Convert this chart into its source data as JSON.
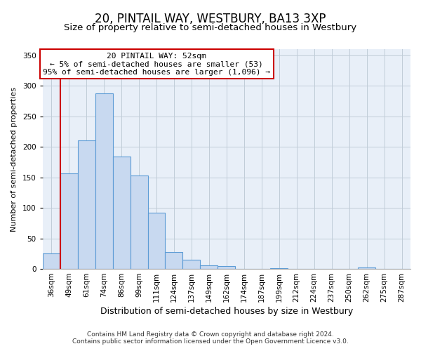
{
  "title": "20, PINTAIL WAY, WESTBURY, BA13 3XP",
  "subtitle": "Size of property relative to semi-detached houses in Westbury",
  "xlabel": "Distribution of semi-detached houses by size in Westbury",
  "ylabel": "Number of semi-detached properties",
  "bar_labels": [
    "36sqm",
    "49sqm",
    "61sqm",
    "74sqm",
    "86sqm",
    "99sqm",
    "111sqm",
    "124sqm",
    "137sqm",
    "149sqm",
    "162sqm",
    "174sqm",
    "187sqm",
    "199sqm",
    "212sqm",
    "224sqm",
    "237sqm",
    "250sqm",
    "262sqm",
    "275sqm",
    "287sqm"
  ],
  "bar_values": [
    25,
    157,
    210,
    287,
    184,
    153,
    92,
    28,
    15,
    6,
    5,
    0,
    0,
    1,
    0,
    0,
    0,
    0,
    2,
    0,
    0
  ],
  "bar_color": "#c8d9f0",
  "bar_edge_color": "#5b9bd5",
  "vline_x_idx": 1,
  "vline_color": "#cc0000",
  "ylim": [
    0,
    360
  ],
  "yticks": [
    0,
    50,
    100,
    150,
    200,
    250,
    300,
    350
  ],
  "annotation_title": "20 PINTAIL WAY: 52sqm",
  "annotation_line1": "← 5% of semi-detached houses are smaller (53)",
  "annotation_line2": "95% of semi-detached houses are larger (1,096) →",
  "annotation_box_facecolor": "#ffffff",
  "annotation_box_edgecolor": "#cc0000",
  "footer_line1": "Contains HM Land Registry data © Crown copyright and database right 2024.",
  "footer_line2": "Contains public sector information licensed under the Open Government Licence v3.0.",
  "bg_color": "#ffffff",
  "plot_bg_color": "#e8eff8",
  "grid_color": "#c0ccd8",
  "title_fontsize": 12,
  "subtitle_fontsize": 9.5,
  "xlabel_fontsize": 9,
  "ylabel_fontsize": 8,
  "tick_fontsize": 7.5,
  "annot_fontsize": 8,
  "footer_fontsize": 6.5
}
